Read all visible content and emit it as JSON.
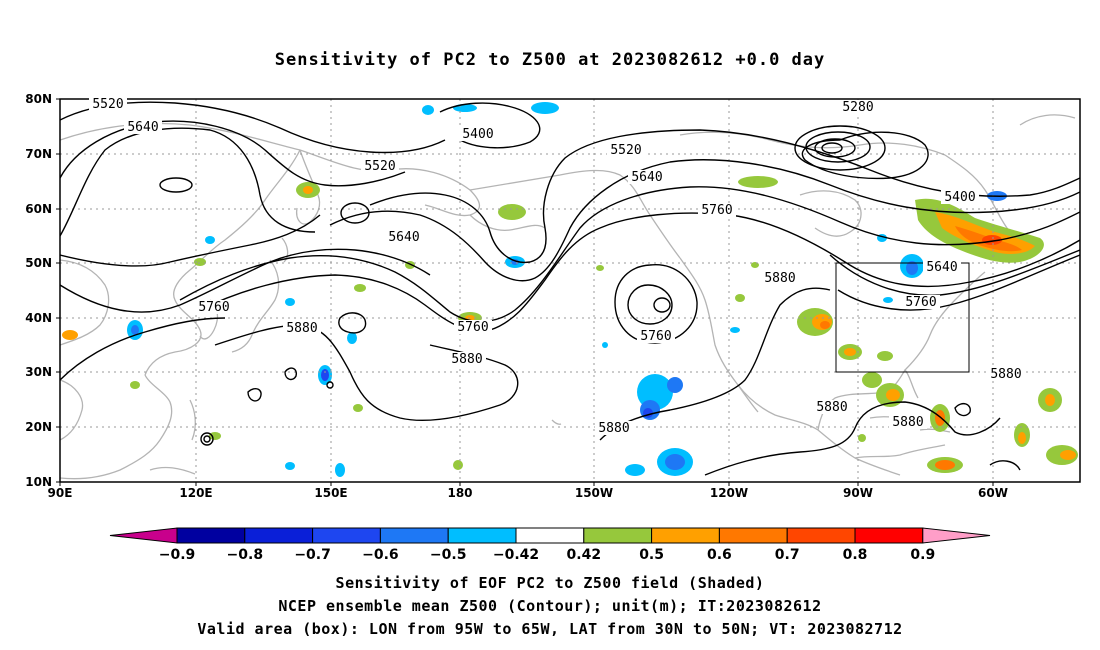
{
  "title": "Sensitivity of PC2 to Z500 at 2023082612 +0.0 day",
  "map": {
    "lat_labels": [
      "80N",
      "70N",
      "60N",
      "50N",
      "40N",
      "30N",
      "20N",
      "10N"
    ],
    "lon_labels": [
      "90E",
      "120E",
      "150E",
      "180",
      "150W",
      "120W",
      "90W",
      "60W"
    ],
    "contour_labels": [
      {
        "text": "5520"
      },
      {
        "text": "5640"
      },
      {
        "text": "5400"
      },
      {
        "text": "5520"
      },
      {
        "text": "5280"
      },
      {
        "text": "5520"
      },
      {
        "text": "5640"
      },
      {
        "text": "5760"
      },
      {
        "text": "5400"
      },
      {
        "text": "5640"
      },
      {
        "text": "5640"
      },
      {
        "text": "5760"
      },
      {
        "text": "5880"
      },
      {
        "text": "5760"
      },
      {
        "text": "5880"
      },
      {
        "text": "5760"
      },
      {
        "text": "5880"
      },
      {
        "text": "5760"
      },
      {
        "text": "5880"
      },
      {
        "text": "5880"
      },
      {
        "text": "5880"
      },
      {
        "text": "5880"
      }
    ],
    "valid_box": {
      "lon": [
        "95W",
        "65W"
      ],
      "lat": [
        "30N",
        "50N"
      ]
    }
  },
  "colorbar": {
    "labels": [
      "-0.9",
      "-0.8",
      "-0.7",
      "-0.6",
      "-0.5",
      "-0.42",
      "0.42",
      "0.5",
      "0.6",
      "0.7",
      "0.8",
      "0.9"
    ],
    "colors": [
      "#0000a0",
      "#0a1fd8",
      "#1e46f0",
      "#1e78f5",
      "#00beff",
      "#ffffff",
      "#96c83c",
      "#ffa000",
      "#ff7800",
      "#ff4600",
      "#ff0000"
    ],
    "under_color": "#c8008c",
    "over_color": "#ff9ec8"
  },
  "captions": {
    "line1": "Sensitivity of EOF PC2 to Z500 field (Shaded)",
    "line2": "NCEP ensemble mean Z500 (Contour); unit(m); IT:2023082612",
    "line3": "Valid area (box): LON from 95W to 65W, LAT from 30N to 50N; VT: 2023082712"
  }
}
